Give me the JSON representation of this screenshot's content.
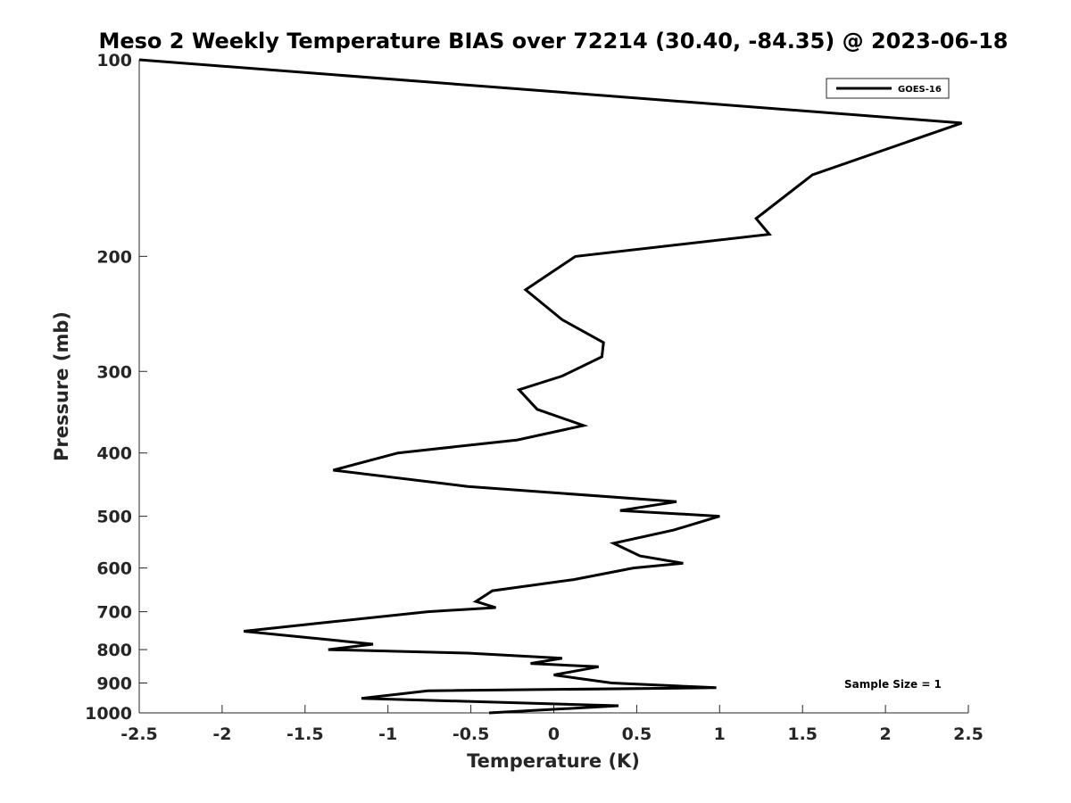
{
  "chart_data": {
    "type": "line",
    "title": "Meso 2 Weekly Temperature BIAS over 72214 (30.40, -84.35) @ 2023-06-18",
    "xlabel": "Temperature (K)",
    "ylabel": "Pressure (mb)",
    "xlim": [
      -2.5,
      2.5
    ],
    "ylim": [
      100,
      1000
    ],
    "yscale": "log",
    "y_reversed": true,
    "grid": false,
    "legend_position": "top-right",
    "x_ticks": [
      -2.5,
      -2,
      -1.5,
      -1,
      -0.5,
      0,
      0.5,
      1,
      1.5,
      2,
      2.5
    ],
    "x_tick_labels": [
      "-2.5",
      "-2",
      "-1.5",
      "-1",
      "-0.5",
      "0",
      "0.5",
      "1",
      "1.5",
      "2",
      "2.5"
    ],
    "y_ticks": [
      100,
      200,
      300,
      400,
      500,
      600,
      700,
      800,
      900,
      1000
    ],
    "y_tick_labels": [
      "100",
      "200",
      "300",
      "400",
      "500",
      "600",
      "700",
      "800",
      "900",
      "1000"
    ],
    "annotation": "Sample Size = 1",
    "series": [
      {
        "name": "GOES-16",
        "color": "#000000",
        "points": [
          {
            "x": -2.5,
            "y": 100
          },
          {
            "x": 2.46,
            "y": 125
          },
          {
            "x": 1.56,
            "y": 150
          },
          {
            "x": 1.22,
            "y": 175
          },
          {
            "x": 1.3,
            "y": 185
          },
          {
            "x": 0.13,
            "y": 200
          },
          {
            "x": -0.17,
            "y": 225
          },
          {
            "x": 0.05,
            "y": 250
          },
          {
            "x": 0.3,
            "y": 271
          },
          {
            "x": 0.29,
            "y": 285
          },
          {
            "x": 0.05,
            "y": 305
          },
          {
            "x": -0.21,
            "y": 320
          },
          {
            "x": -0.1,
            "y": 343
          },
          {
            "x": 0.18,
            "y": 363
          },
          {
            "x": -0.22,
            "y": 382
          },
          {
            "x": -0.94,
            "y": 400
          },
          {
            "x": -1.33,
            "y": 425
          },
          {
            "x": -0.52,
            "y": 450
          },
          {
            "x": 0.74,
            "y": 475
          },
          {
            "x": 0.4,
            "y": 490
          },
          {
            "x": 1.0,
            "y": 500
          },
          {
            "x": 0.72,
            "y": 525
          },
          {
            "x": 0.36,
            "y": 550
          },
          {
            "x": 0.52,
            "y": 575
          },
          {
            "x": 0.78,
            "y": 590
          },
          {
            "x": 0.48,
            "y": 600
          },
          {
            "x": 0.12,
            "y": 625
          },
          {
            "x": -0.37,
            "y": 650
          },
          {
            "x": -0.47,
            "y": 675
          },
          {
            "x": -0.35,
            "y": 690
          },
          {
            "x": -0.76,
            "y": 700
          },
          {
            "x": -1.33,
            "y": 725
          },
          {
            "x": -1.87,
            "y": 750
          },
          {
            "x": -1.3,
            "y": 775
          },
          {
            "x": -1.09,
            "y": 785
          },
          {
            "x": -1.36,
            "y": 800
          },
          {
            "x": -0.52,
            "y": 810
          },
          {
            "x": 0.05,
            "y": 825
          },
          {
            "x": -0.14,
            "y": 840
          },
          {
            "x": 0.27,
            "y": 850
          },
          {
            "x": 0.0,
            "y": 875
          },
          {
            "x": 0.35,
            "y": 900
          },
          {
            "x": 0.98,
            "y": 915
          },
          {
            "x": -0.76,
            "y": 925
          },
          {
            "x": -1.16,
            "y": 950
          },
          {
            "x": 0.39,
            "y": 975
          },
          {
            "x": -0.39,
            "y": 1000
          }
        ]
      }
    ]
  }
}
